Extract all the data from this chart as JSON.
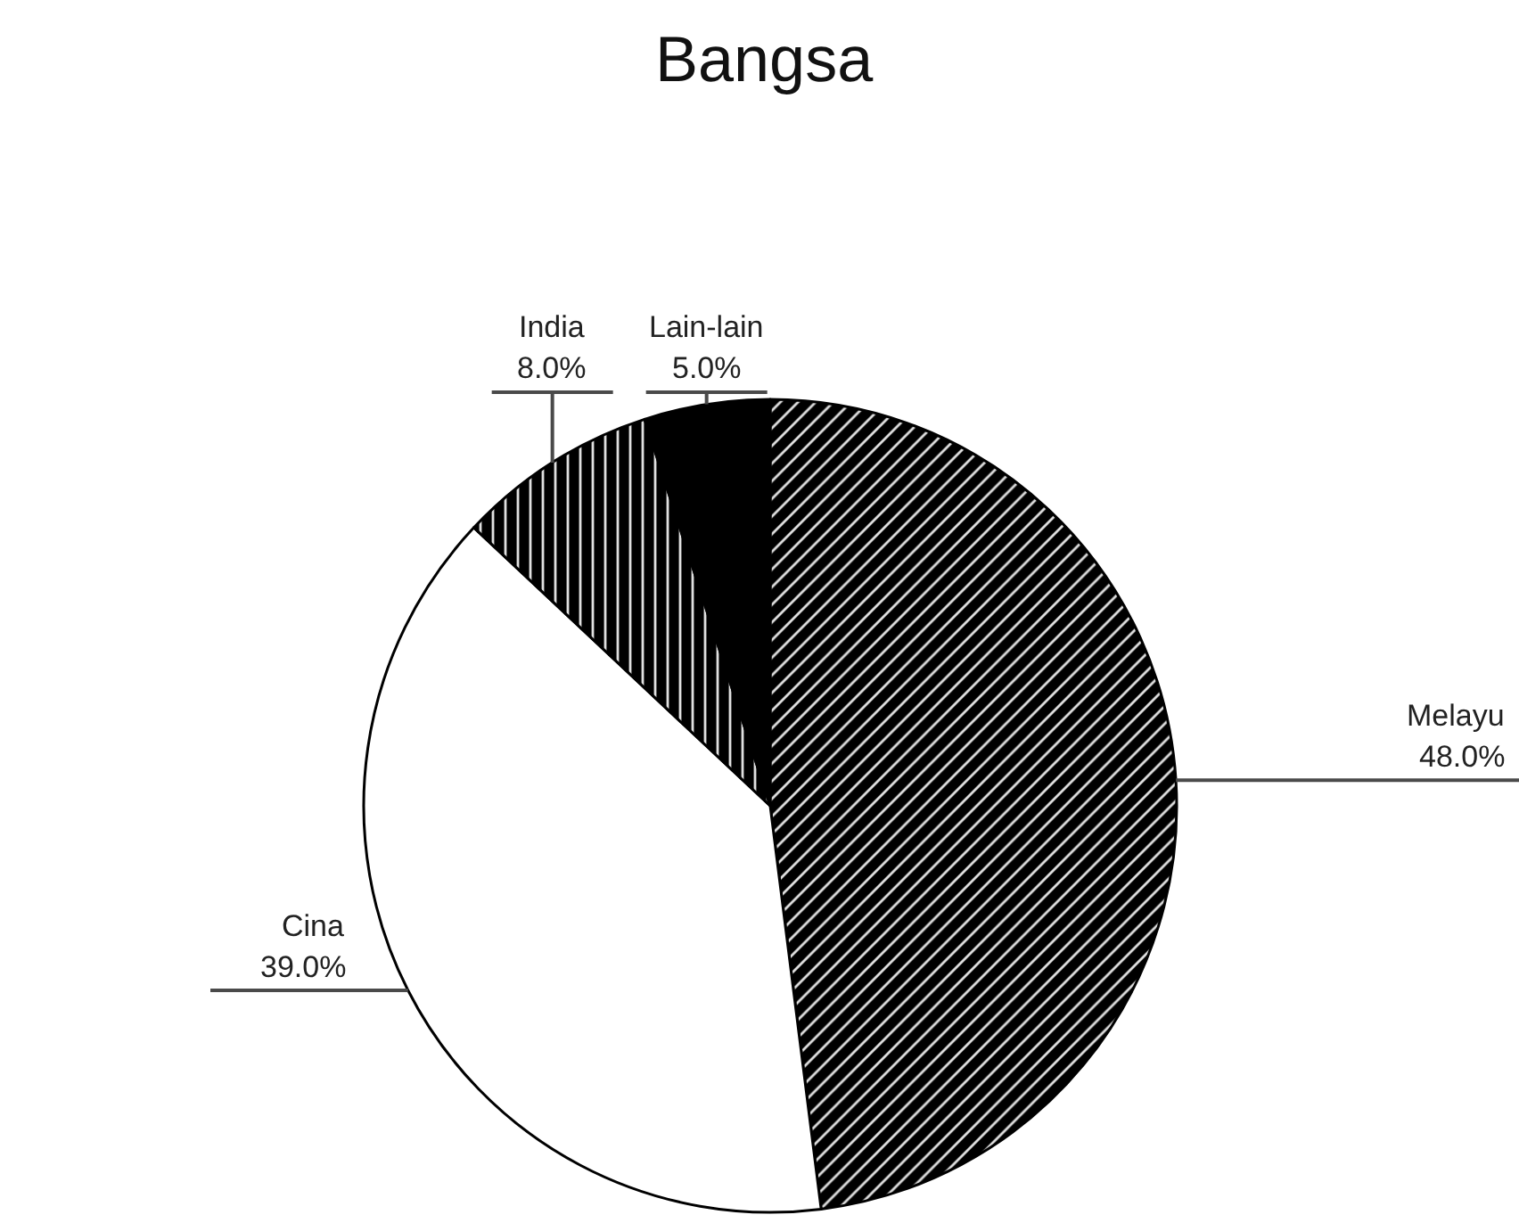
{
  "chart_data": {
    "type": "pie",
    "title": "Bangsa",
    "categories": [
      "Melayu",
      "Cina",
      "India",
      "Lain-lain"
    ],
    "values": [
      48,
      39,
      8,
      5
    ],
    "value_labels": [
      "48.0%",
      "39.0%",
      "8.0%",
      "5.0%"
    ],
    "colors": [
      "#000000",
      "#ffffff",
      "#000000",
      "#000000"
    ]
  }
}
